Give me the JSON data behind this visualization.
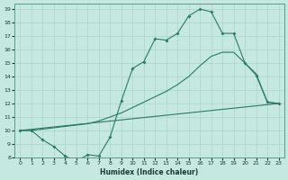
{
  "xlabel": "Humidex (Indice chaleur)",
  "background_color": "#c5e8e0",
  "grid_color": "#aad4cc",
  "line_color": "#2a7a68",
  "xlim": [
    -0.5,
    23.5
  ],
  "ylim": [
    8,
    19.4
  ],
  "xticks": [
    0,
    1,
    2,
    3,
    4,
    5,
    6,
    7,
    8,
    9,
    10,
    11,
    12,
    13,
    14,
    15,
    16,
    17,
    18,
    19,
    20,
    21,
    22,
    23
  ],
  "yticks": [
    8,
    9,
    10,
    11,
    12,
    13,
    14,
    15,
    16,
    17,
    18,
    19
  ],
  "curve1_x": [
    0,
    1,
    2,
    3,
    4,
    5,
    6,
    7,
    8,
    9,
    10,
    11,
    12,
    13,
    14,
    15,
    16,
    17,
    18,
    19,
    20,
    21,
    22,
    23
  ],
  "curve1_y": [
    10,
    10,
    9.3,
    8.8,
    8.1,
    7.7,
    8.2,
    8.1,
    9.5,
    12.2,
    14.6,
    15.1,
    16.8,
    16.7,
    17.2,
    18.5,
    19.0,
    18.8,
    17.2,
    17.2,
    15.0,
    14.1,
    12.1,
    12.0
  ],
  "curve2_x": [
    0,
    1,
    2,
    3,
    4,
    5,
    6,
    7,
    8,
    9,
    10,
    11,
    12,
    13,
    14,
    15,
    16,
    17,
    18,
    19,
    20,
    21,
    22,
    23
  ],
  "curve2_y": [
    10,
    10,
    10.1,
    10.2,
    10.3,
    10.4,
    10.5,
    10.7,
    11.0,
    11.3,
    11.7,
    12.1,
    12.5,
    12.9,
    13.4,
    14.0,
    14.8,
    15.5,
    15.8,
    15.8,
    15.0,
    14.2,
    12.1,
    12.0
  ],
  "curve3_x": [
    0,
    23
  ],
  "curve3_y": [
    10,
    12.0
  ]
}
